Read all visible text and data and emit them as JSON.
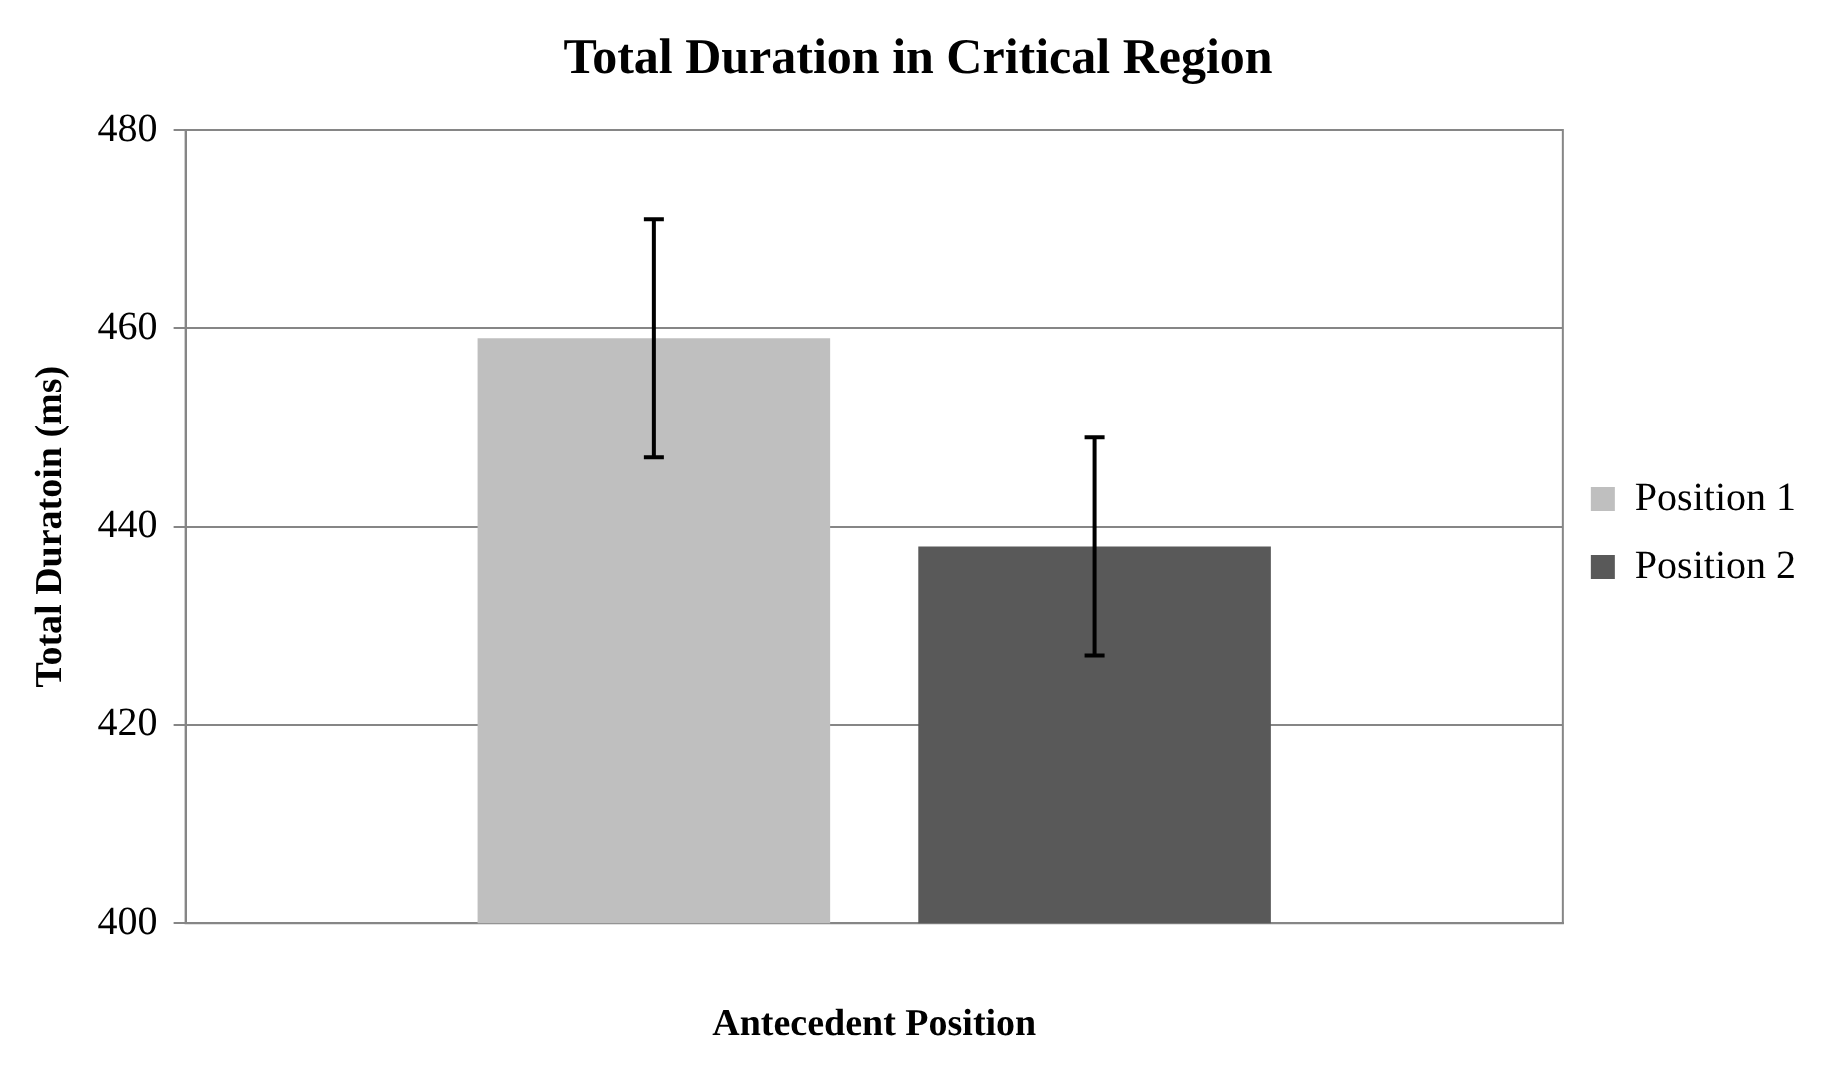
{
  "chart_data": {
    "type": "bar",
    "title": "Total Duration in Critical Region",
    "xlabel": "Antecedent Position",
    "ylabel": "Total Duratoin (ms)",
    "categories": [
      null
    ],
    "series": [
      {
        "name": "Position 1",
        "color": "#bfbfbf",
        "values": [
          459
        ],
        "errors": [
          12
        ]
      },
      {
        "name": "Position 2",
        "color": "#595959",
        "values": [
          438
        ],
        "errors": [
          11
        ]
      }
    ],
    "ylim": [
      400,
      480
    ],
    "yticks": [
      400,
      420,
      440,
      460,
      480
    ],
    "grid": "y",
    "legend": "right"
  }
}
